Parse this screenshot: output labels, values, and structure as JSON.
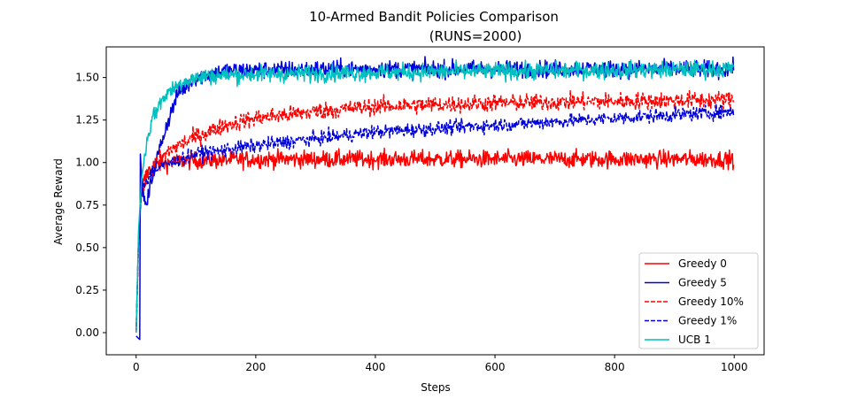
{
  "chart_data": {
    "type": "line",
    "title_line1": "10-Armed Bandit Policies Comparison",
    "title_line2": "(RUNS=2000)",
    "xlabel": "Steps",
    "ylabel": "Average Reward",
    "xlim": [
      -50,
      1050
    ],
    "ylim": [
      -0.13,
      1.68
    ],
    "xticks": [
      0,
      200,
      400,
      600,
      800,
      1000
    ],
    "xtick_labels": [
      "0",
      "200",
      "400",
      "600",
      "800",
      "1000"
    ],
    "yticks": [
      0.0,
      0.25,
      0.5,
      0.75,
      1.0,
      1.25,
      1.5
    ],
    "ytick_labels": [
      "0.00",
      "0.25",
      "0.50",
      "0.75",
      "1.00",
      "1.25",
      "1.50"
    ],
    "grid": false,
    "legend_position": "lower-right",
    "steps": 1000,
    "series": [
      {
        "name": "Greedy 0",
        "color": "#ff0000",
        "dash": false,
        "keypoints": [
          [
            1,
            0.0
          ],
          [
            5,
            0.55
          ],
          [
            10,
            0.85
          ],
          [
            20,
            0.95
          ],
          [
            40,
            0.99
          ],
          [
            80,
            1.01
          ],
          [
            200,
            1.02
          ],
          [
            1000,
            1.02
          ]
        ],
        "noise": 0.025
      },
      {
        "name": "Greedy 5",
        "color": "#0000dd",
        "dash": false,
        "keypoints": [
          [
            1,
            -0.02
          ],
          [
            7,
            -0.04
          ],
          [
            8,
            1.05
          ],
          [
            12,
            0.8
          ],
          [
            18,
            0.74
          ],
          [
            30,
            0.95
          ],
          [
            50,
            1.2
          ],
          [
            70,
            1.4
          ],
          [
            100,
            1.5
          ],
          [
            150,
            1.54
          ],
          [
            300,
            1.55
          ],
          [
            1000,
            1.55
          ]
        ],
        "noise": 0.025
      },
      {
        "name": "Greedy 10%",
        "color": "#ff0000",
        "dash": true,
        "keypoints": [
          [
            1,
            0.0
          ],
          [
            5,
            0.55
          ],
          [
            10,
            0.85
          ],
          [
            30,
            0.98
          ],
          [
            60,
            1.08
          ],
          [
            100,
            1.15
          ],
          [
            150,
            1.22
          ],
          [
            200,
            1.26
          ],
          [
            300,
            1.3
          ],
          [
            400,
            1.33
          ],
          [
            600,
            1.35
          ],
          [
            1000,
            1.37
          ]
        ],
        "noise": 0.025
      },
      {
        "name": "Greedy 1%",
        "color": "#0000dd",
        "dash": true,
        "keypoints": [
          [
            1,
            0.0
          ],
          [
            5,
            0.55
          ],
          [
            10,
            0.85
          ],
          [
            30,
            0.96
          ],
          [
            60,
            1.0
          ],
          [
            100,
            1.05
          ],
          [
            200,
            1.1
          ],
          [
            300,
            1.14
          ],
          [
            400,
            1.18
          ],
          [
            500,
            1.2
          ],
          [
            600,
            1.22
          ],
          [
            800,
            1.26
          ],
          [
            1000,
            1.3
          ]
        ],
        "noise": 0.02
      },
      {
        "name": "UCB 1",
        "color": "#00bfbf",
        "dash": false,
        "keypoints": [
          [
            1,
            0.0
          ],
          [
            5,
            0.6
          ],
          [
            10,
            0.9
          ],
          [
            20,
            1.15
          ],
          [
            30,
            1.28
          ],
          [
            50,
            1.4
          ],
          [
            80,
            1.48
          ],
          [
            120,
            1.51
          ],
          [
            200,
            1.52
          ],
          [
            400,
            1.53
          ],
          [
            1000,
            1.55
          ]
        ],
        "noise": 0.025
      }
    ]
  }
}
